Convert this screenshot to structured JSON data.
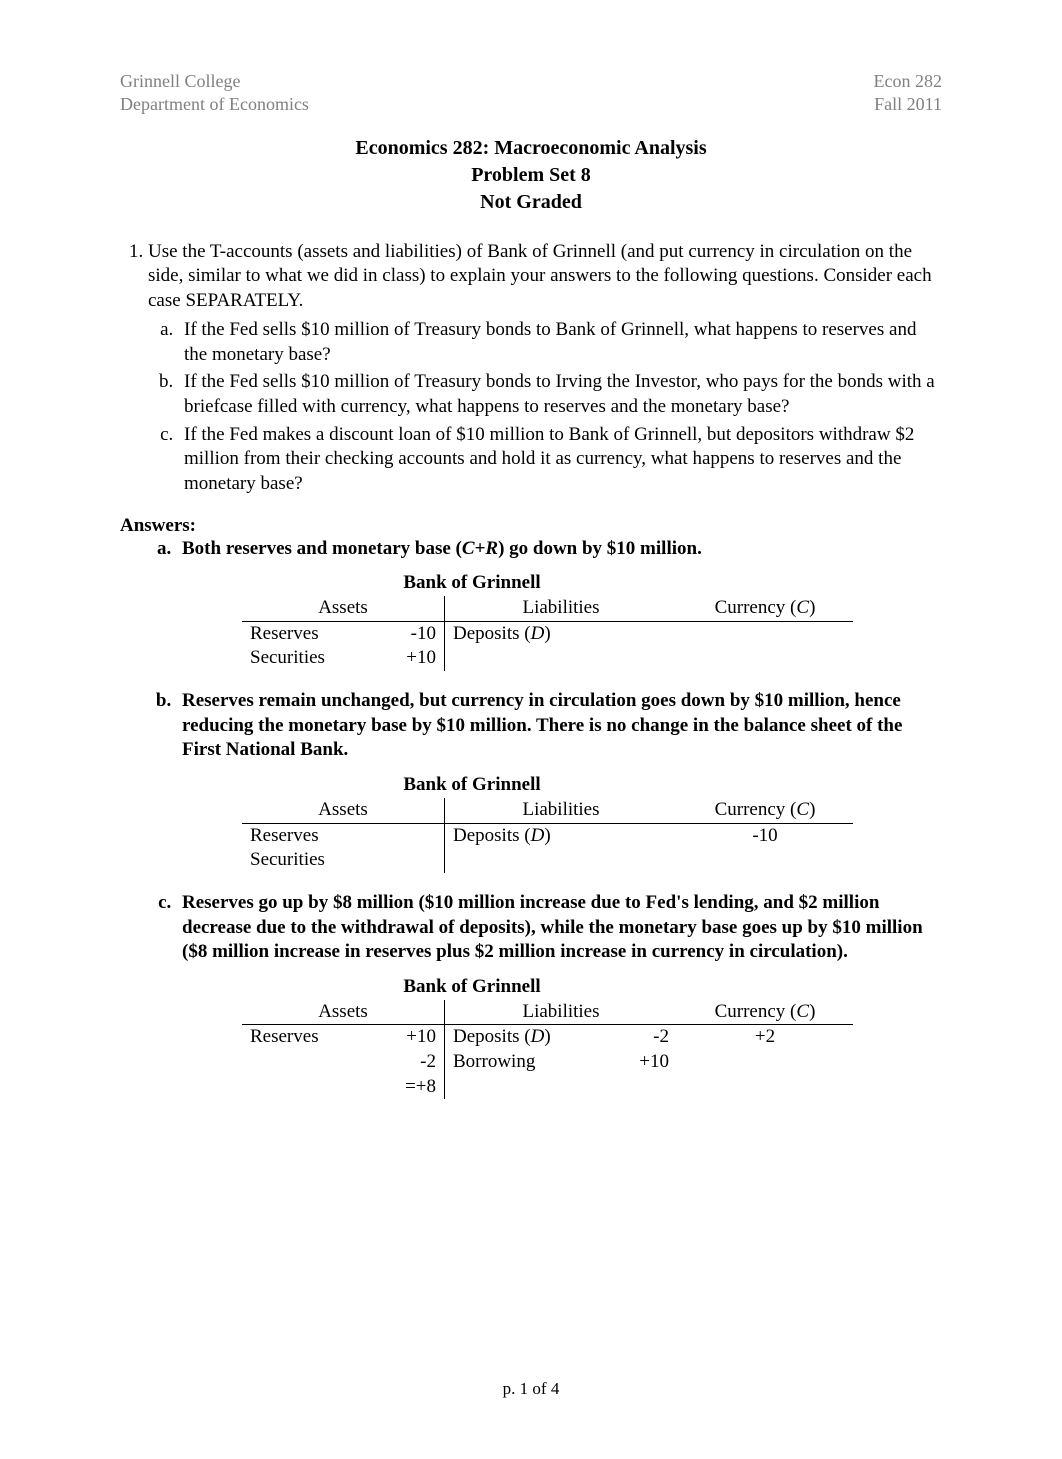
{
  "header": {
    "left_line1": "Grinnell College",
    "left_line2": "Department of Economics",
    "right_line1": "Econ 282",
    "right_line2": "Fall 2011"
  },
  "title": {
    "line1": "Economics 282: Macroeconomic Analysis",
    "line2": "Problem Set 8",
    "line3": "Not Graded"
  },
  "question1": {
    "number": "1.",
    "stem": "Use the T-accounts (assets and liabilities) of Bank of Grinnell (and put currency in circulation on the side, similar to what we did in class) to explain your answers to the following questions. Consider each case SEPARATELY.",
    "parts": {
      "a": "If the Fed sells $10 million of Treasury bonds to Bank of Grinnell, what happens to reserves and the monetary base?",
      "b": "If the Fed sells $10 million of Treasury bonds to Irving the Investor, who pays for the bonds with a briefcase filled with currency, what happens to reserves and the monetary base?",
      "c": "If the Fed makes a discount loan of $10 million to Bank of Grinnell, but depositors withdraw $2 million from their checking accounts and hold it as currency, what happens to reserves and the monetary base?"
    }
  },
  "answers_label": "Answers:",
  "answers": {
    "a": {
      "text_pre": "Both reserves and monetary base (",
      "text_var": "C+R",
      "text_post": ") go down by $10 million.",
      "table": {
        "title": "Bank of Grinnell",
        "headers": {
          "assets": "Assets",
          "liabilities": "Liabilities",
          "currency_pre": "Currency (",
          "currency_var": "C",
          "currency_post": ")"
        },
        "rows": [
          {
            "asset": "Reserves",
            "asset_val": "-10",
            "liab_pre": "Deposits (",
            "liab_var": "D",
            "liab_post": ")",
            "liab_val": "",
            "curr": ""
          },
          {
            "asset": "Securities",
            "asset_val": "+10",
            "liab_pre": "",
            "liab_var": "",
            "liab_post": "",
            "liab_val": "",
            "curr": ""
          }
        ]
      }
    },
    "b": {
      "text": "Reserves remain unchanged, but currency in circulation goes down by $10 million, hence reducing the monetary base by $10 million. There is no change in the balance sheet of the First National Bank.",
      "table": {
        "title": "Bank of Grinnell",
        "headers": {
          "assets": "Assets",
          "liabilities": "Liabilities",
          "currency_pre": "Currency (",
          "currency_var": "C",
          "currency_post": ")"
        },
        "rows": [
          {
            "asset": "Reserves",
            "asset_val": "",
            "liab_pre": "Deposits (",
            "liab_var": "D",
            "liab_post": ")",
            "liab_val": "",
            "curr": "-10"
          },
          {
            "asset": "Securities",
            "asset_val": "",
            "liab_pre": "",
            "liab_var": "",
            "liab_post": "",
            "liab_val": "",
            "curr": ""
          }
        ]
      }
    },
    "c": {
      "text": "Reserves go up by $8 million ($10 million increase due to Fed's lending, and $2 million decrease due to the withdrawal of deposits), while the monetary base goes up by $10 million ($8 million increase in reserves plus $2 million increase in currency in circulation).",
      "table": {
        "title": "Bank of Grinnell",
        "headers": {
          "assets": "Assets",
          "liabilities": "Liabilities",
          "currency_pre": "Currency (",
          "currency_var": "C",
          "currency_post": ")"
        },
        "rows": [
          {
            "asset": "Reserves",
            "asset_val": "+10",
            "liab_pre": "Deposits (",
            "liab_var": "D",
            "liab_post": ")",
            "liab_val": "-2",
            "curr": "+2"
          },
          {
            "asset": "",
            "asset_val": "-2",
            "liab_pre": "Borrowing",
            "liab_var": "",
            "liab_post": "",
            "liab_val": "+10",
            "curr": ""
          },
          {
            "asset": "",
            "asset_val": "=+8",
            "liab_pre": "",
            "liab_var": "",
            "liab_post": "",
            "liab_val": "",
            "curr": ""
          }
        ]
      }
    }
  },
  "footer": "p. 1 of 4",
  "colors": {
    "header_text": "#808080",
    "body_text": "#000000",
    "background": "#ffffff",
    "rule": "#000000"
  },
  "typography": {
    "body_font": "Times New Roman",
    "body_size_pt": 14,
    "title_size_pt": 15,
    "header_size_pt": 13
  }
}
